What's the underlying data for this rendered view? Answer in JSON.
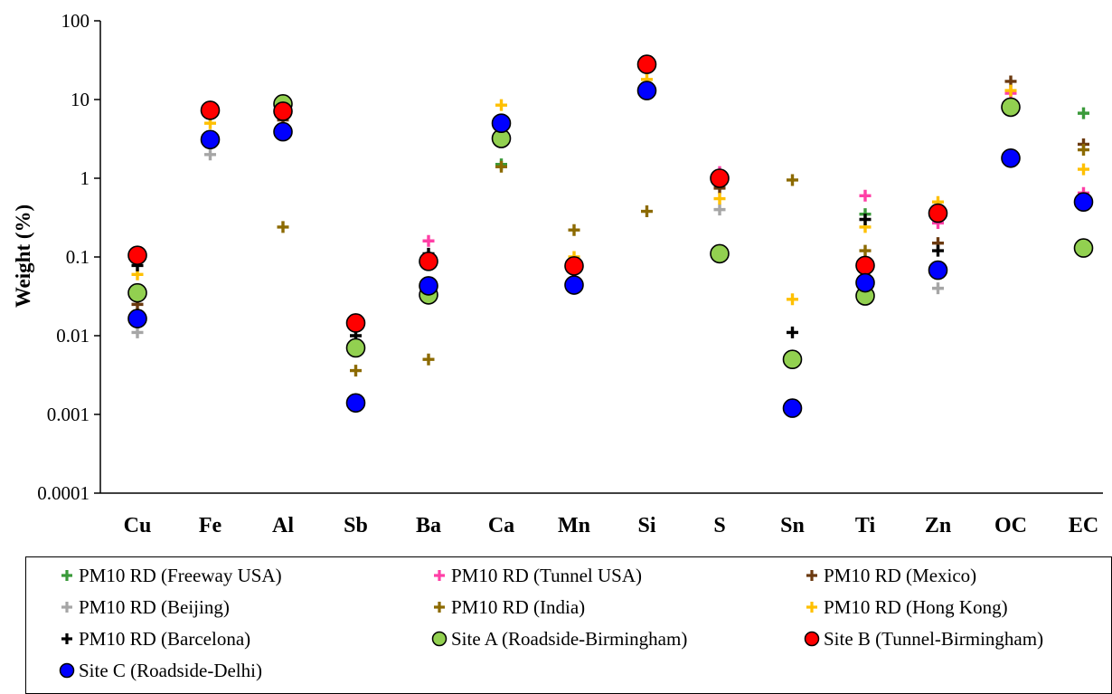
{
  "chart_data": {
    "type": "scatter",
    "title": "",
    "xlabel": "",
    "ylabel": "Weight (%)",
    "y_scale": "log",
    "ylim": [
      0.0001,
      100
    ],
    "y_ticks": [
      "0.0001",
      "0.001",
      "0.01",
      "0.1",
      "1",
      "10",
      "100"
    ],
    "categories": [
      "Cu",
      "Fe",
      "Al",
      "Sb",
      "Ba",
      "Ca",
      "Mn",
      "Si",
      "S",
      "Sn",
      "Ti",
      "Zn",
      "OC",
      "EC"
    ],
    "legend_position": "bottom",
    "grid": false,
    "series": [
      {
        "name": "PM10 RD (Freeway USA)",
        "marker": "plus",
        "color": "#3a9a3a",
        "values": [
          null,
          null,
          null,
          null,
          null,
          1.5,
          null,
          null,
          null,
          null,
          0.35,
          null,
          null,
          6.7
        ]
      },
      {
        "name": "PM10 RD (Tunnel USA)",
        "marker": "plus",
        "color": "#ff3fa6",
        "values": [
          null,
          null,
          null,
          null,
          0.16,
          null,
          null,
          null,
          1.2,
          null,
          0.6,
          0.27,
          12,
          0.65
        ]
      },
      {
        "name": "PM10 RD (Mexico)",
        "marker": "plus",
        "color": "#6b3a10",
        "values": [
          0.025,
          null,
          5.5,
          null,
          null,
          null,
          null,
          null,
          0.75,
          null,
          null,
          0.15,
          17,
          2.7
        ]
      },
      {
        "name": "PM10 RD (Beijing)",
        "marker": "plus",
        "color": "#a6a6a6",
        "values": [
          0.011,
          2.0,
          null,
          null,
          null,
          null,
          null,
          null,
          0.4,
          null,
          null,
          0.04,
          null,
          null
        ]
      },
      {
        "name": "PM10 RD (India)",
        "marker": "plus",
        "color": "#8c6a00",
        "values": [
          null,
          null,
          0.24,
          0.0036,
          0.005,
          1.4,
          0.22,
          0.38,
          null,
          0.95,
          0.12,
          null,
          null,
          2.3
        ]
      },
      {
        "name": "PM10 RD (Hong Kong)",
        "marker": "plus",
        "color": "#ffc000",
        "values": [
          0.06,
          5.0,
          null,
          null,
          null,
          8.5,
          0.1,
          18,
          0.55,
          0.029,
          0.24,
          0.5,
          13,
          1.3
        ]
      },
      {
        "name": "PM10 RD  (Barcelona)",
        "marker": "plus",
        "color": "#000000",
        "values": [
          0.078,
          null,
          null,
          0.01,
          0.11,
          null,
          null,
          null,
          null,
          0.011,
          0.3,
          0.12,
          null,
          null
        ]
      },
      {
        "name": "Site A (Roadside-Birmingham)",
        "marker": "circle",
        "color": "#92d050",
        "values": [
          0.035,
          null,
          8.8,
          0.007,
          0.033,
          3.2,
          null,
          null,
          0.11,
          0.005,
          0.032,
          null,
          8.0,
          0.13
        ]
      },
      {
        "name": "Site B (Tunnel-Birmingham)",
        "marker": "circle",
        "color": "#ff0000",
        "values": [
          0.105,
          7.3,
          7.1,
          0.0145,
          0.088,
          null,
          0.077,
          28,
          1.0,
          null,
          0.078,
          0.36,
          null,
          null
        ]
      },
      {
        "name": "Site C (Roadside-Delhi)",
        "marker": "circle",
        "color": "#0000ff",
        "values": [
          0.0165,
          3.1,
          3.9,
          0.0014,
          0.043,
          5.0,
          0.044,
          13,
          null,
          0.0012,
          0.047,
          0.068,
          1.8,
          0.5
        ]
      }
    ]
  }
}
